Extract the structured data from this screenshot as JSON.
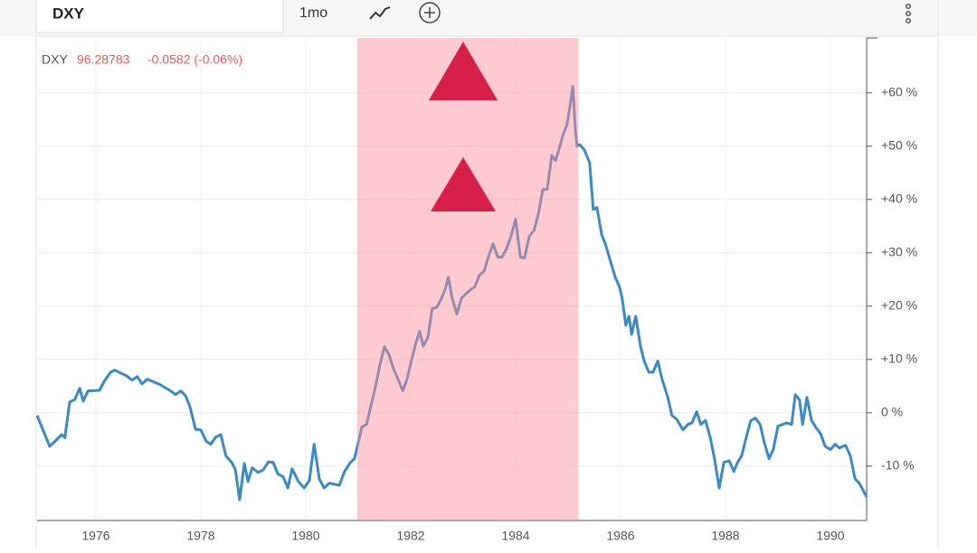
{
  "header": {
    "symbol": "DXY",
    "interval": "1mo"
  },
  "chart_data": {
    "type": "line",
    "quote": {
      "price": "96.28783",
      "change": "-0.0582 (-0.06%)"
    },
    "x": [
      1974.88,
      1975.12,
      1975.35,
      1975.41,
      1975.5,
      1975.6,
      1975.69,
      1975.76,
      1975.85,
      1976.07,
      1976.16,
      1976.28,
      1976.36,
      1976.59,
      1976.69,
      1976.79,
      1976.88,
      1976.98,
      1977.22,
      1977.41,
      1977.52,
      1977.62,
      1977.71,
      1977.79,
      1977.9,
      1978.0,
      1978.1,
      1978.19,
      1978.28,
      1978.38,
      1978.48,
      1978.59,
      1978.66,
      1978.74,
      1978.83,
      1978.9,
      1978.98,
      1979.09,
      1979.19,
      1979.29,
      1979.38,
      1979.47,
      1979.57,
      1979.66,
      1979.74,
      1979.86,
      1979.97,
      1980.07,
      1980.16,
      1980.26,
      1980.35,
      1980.45,
      1980.64,
      1980.74,
      1980.85,
      1980.93,
      1981.0,
      1981.07,
      1981.16,
      1981.24,
      1981.33,
      1981.41,
      1981.5,
      1981.59,
      1981.67,
      1981.76,
      1981.85,
      1981.93,
      1982.02,
      1982.1,
      1982.17,
      1982.24,
      1982.33,
      1982.41,
      1982.5,
      1982.59,
      1982.66,
      1982.72,
      1982.79,
      1982.88,
      1982.97,
      1983.14,
      1983.22,
      1983.31,
      1983.4,
      1983.48,
      1983.57,
      1983.66,
      1983.74,
      1983.83,
      1983.91,
      1984.0,
      1984.09,
      1984.17,
      1984.26,
      1984.35,
      1984.43,
      1984.52,
      1984.6,
      1984.69,
      1984.76,
      1984.83,
      1984.9,
      1984.98,
      1985.03,
      1985.09,
      1985.14,
      1985.17,
      1985.22,
      1985.31,
      1985.41,
      1985.48,
      1985.55,
      1985.64,
      1985.72,
      1985.81,
      1985.9,
      1985.98,
      1986.03,
      1986.1,
      1986.16,
      1986.21,
      1986.29,
      1986.38,
      1986.45,
      1986.54,
      1986.62,
      1986.71,
      1986.79,
      1986.9,
      1986.98,
      1987.07,
      1987.19,
      1987.28,
      1987.36,
      1987.45,
      1987.53,
      1987.62,
      1987.71,
      1987.79,
      1987.88,
      1987.97,
      1988.07,
      1988.16,
      1988.22,
      1988.31,
      1988.4,
      1988.48,
      1988.57,
      1988.66,
      1988.74,
      1988.83,
      1988.91,
      1989.0,
      1989.17,
      1989.26,
      1989.33,
      1989.41,
      1989.47,
      1989.55,
      1989.64,
      1989.72,
      1989.81,
      1989.9,
      1990.0,
      1990.09,
      1990.17,
      1990.29,
      1990.38,
      1990.47,
      1990.55,
      1990.69
    ],
    "series": [
      {
        "name": "DXY",
        "color": "#3c8ac4",
        "values": [
          -0.5,
          -6.3,
          -4.1,
          -4.7,
          2.0,
          2.5,
          4.6,
          2.2,
          4.1,
          4.2,
          5.9,
          7.6,
          8.0,
          6.9,
          6.1,
          6.8,
          5.4,
          6.3,
          5.3,
          4.2,
          3.4,
          4.1,
          3.2,
          1.2,
          -3.1,
          -3.2,
          -5.3,
          -5.9,
          -4.6,
          -4.1,
          -8.1,
          -9.3,
          -10.7,
          -16.3,
          -9.5,
          -12.9,
          -10.3,
          -11.2,
          -10.7,
          -9.2,
          -9.3,
          -11.5,
          -12.0,
          -14.1,
          -10.5,
          -12.9,
          -14.1,
          -12.7,
          -5.9,
          -12.4,
          -14.1,
          -13.2,
          -13.6,
          -11.0,
          -9.3,
          -8.6,
          -5.6,
          -2.7,
          -2.2,
          1.2,
          4.9,
          8.8,
          12.4,
          10.8,
          8.3,
          6.3,
          4.1,
          6.3,
          10.0,
          13.1,
          15.3,
          12.5,
          14.2,
          19.5,
          19.8,
          21.5,
          23.2,
          25.4,
          21.5,
          18.5,
          21.5,
          23.1,
          23.6,
          25.8,
          26.6,
          29.2,
          31.7,
          29.2,
          29.2,
          30.8,
          33.1,
          36.3,
          29.2,
          29.0,
          33.1,
          34.2,
          37.1,
          41.9,
          41.9,
          48.3,
          47.3,
          49.5,
          52.0,
          54.1,
          57.1,
          61.2,
          52.9,
          50.0,
          50.3,
          49.3,
          46.9,
          38.1,
          38.5,
          33.4,
          31.4,
          28.3,
          25.4,
          23.6,
          21.5,
          16.4,
          18.1,
          14.7,
          18.1,
          12.5,
          9.7,
          7.6,
          7.6,
          9.7,
          6.3,
          2.9,
          -0.5,
          -1.2,
          -3.2,
          -2.2,
          -1.9,
          0.2,
          -2.2,
          -1.4,
          -4.7,
          -8.6,
          -14.1,
          -9.3,
          -9.0,
          -11.0,
          -9.5,
          -8.0,
          -4.4,
          -1.5,
          -1.0,
          -2.2,
          -5.6,
          -8.6,
          -6.9,
          -2.5,
          -1.9,
          -2.2,
          3.4,
          2.4,
          -2.2,
          2.9,
          -1.4,
          -2.7,
          -3.9,
          -6.3,
          -6.9,
          -5.9,
          -6.6,
          -6.1,
          -8.1,
          -12.4,
          -13.2,
          -15.8
        ]
      }
    ],
    "shaded_range": [
      1980.98,
      1985.2
    ],
    "xlim": [
      1974.88,
      1990.69
    ],
    "xticks": [
      1976,
      1978,
      1980,
      1982,
      1984,
      1986,
      1988,
      1990
    ],
    "ylim": [
      -20.2,
      70.3
    ],
    "yticks": [
      {
        "value": -10,
        "label": "-10 %"
      },
      {
        "value": 0,
        "label": "0 %"
      },
      {
        "value": 10,
        "label": "+10 %"
      },
      {
        "value": 20,
        "label": "+20 %"
      },
      {
        "value": 30,
        "label": "+30 %"
      },
      {
        "value": 40,
        "label": "+40 %"
      },
      {
        "value": 50,
        "label": "+50 %"
      },
      {
        "value": 60,
        "label": "+60 %"
      }
    ],
    "grid": true
  }
}
